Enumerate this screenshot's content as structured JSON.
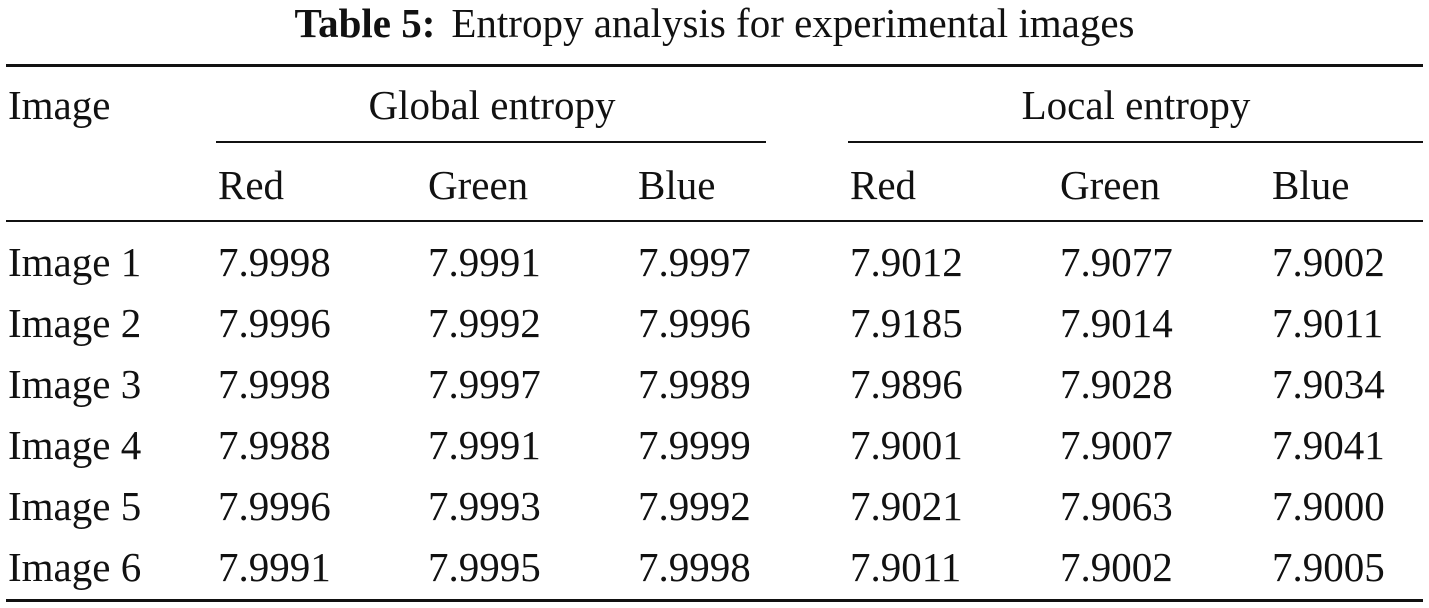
{
  "caption": {
    "label": "Table 5:",
    "text": "Entropy analysis for experimental images"
  },
  "table": {
    "row_header": "Image",
    "groups": [
      "Global entropy",
      "Local entropy"
    ],
    "subheaders": [
      "Red",
      "Green",
      "Blue",
      "Red",
      "Green",
      "Blue"
    ],
    "rows": [
      {
        "image": "Image 1",
        "values": [
          "7.9998",
          "7.9991",
          "7.9997",
          "7.9012",
          "7.9077",
          "7.9002"
        ]
      },
      {
        "image": "Image 2",
        "values": [
          "7.9996",
          "7.9992",
          "7.9996",
          "7.9185",
          "7.9014",
          "7.9011"
        ]
      },
      {
        "image": "Image 3",
        "values": [
          "7.9998",
          "7.9997",
          "7.9989",
          "7.9896",
          "7.9028",
          "7.9034"
        ]
      },
      {
        "image": "Image 4",
        "values": [
          "7.9988",
          "7.9991",
          "7.9999",
          "7.9001",
          "7.9007",
          "7.9041"
        ]
      },
      {
        "image": "Image 5",
        "values": [
          "7.9996",
          "7.9993",
          "7.9992",
          "7.9021",
          "7.9063",
          "7.9000"
        ]
      },
      {
        "image": "Image 6",
        "values": [
          "7.9991",
          "7.9995",
          "7.9998",
          "7.9011",
          "7.9002",
          "7.9005"
        ]
      }
    ]
  }
}
